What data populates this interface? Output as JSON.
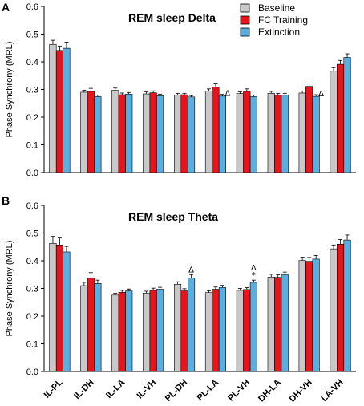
{
  "colors": {
    "Baseline": "#c8c8c8",
    "FC Training": "#e8141b",
    "Extinction": "#5aaee0"
  },
  "legend": [
    "Baseline",
    "FC Training",
    "Extinction"
  ],
  "chart_data": [
    {
      "type": "bar",
      "panel": "A",
      "title": "REM sleep Delta",
      "ylabel": "Phase Synchrony (MRL)",
      "xlabel": "",
      "ylim": [
        0,
        0.6
      ],
      "yticks": [
        "0.0",
        "0.1",
        "0.2",
        "0.3",
        "0.4",
        "0.5",
        "0.6"
      ],
      "categories": [
        "IL-PL",
        "IL-DH",
        "IL-LA",
        "IL-VH",
        "PL-DH",
        "PL-LA",
        "PL-VH",
        "DH-LA",
        "DH-VH",
        "LA-VH"
      ],
      "series": [
        {
          "name": "Baseline",
          "values": [
            0.463,
            0.29,
            0.297,
            0.284,
            0.28,
            0.294,
            0.285,
            0.286,
            0.287,
            0.366
          ],
          "errors": [
            0.015,
            0.007,
            0.008,
            0.007,
            0.006,
            0.008,
            0.006,
            0.007,
            0.007,
            0.013
          ]
        },
        {
          "name": "FC Training",
          "values": [
            0.441,
            0.293,
            0.281,
            0.288,
            0.281,
            0.308,
            0.293,
            0.279,
            0.311,
            0.391
          ],
          "errors": [
            0.016,
            0.011,
            0.006,
            0.007,
            0.005,
            0.012,
            0.009,
            0.007,
            0.012,
            0.014
          ]
        },
        {
          "name": "Extinction",
          "values": [
            0.449,
            0.274,
            0.283,
            0.277,
            0.273,
            0.276,
            0.274,
            0.28,
            0.275,
            0.416
          ],
          "errors": [
            0.022,
            0.006,
            0.006,
            0.006,
            0.005,
            0.006,
            0.006,
            0.006,
            0.006,
            0.013
          ]
        }
      ],
      "annotations": [
        {
          "category": "PL-LA",
          "series": "Extinction",
          "text": "Δ"
        },
        {
          "category": "DH-VH",
          "series": "Extinction",
          "text": "Δ"
        }
      ]
    },
    {
      "type": "bar",
      "panel": "B",
      "title": "REM sleep Theta",
      "ylabel": "Phase Synchrony (MRL)",
      "xlabel": "",
      "ylim": [
        0,
        0.6
      ],
      "yticks": [
        "0.0",
        "0.1",
        "0.2",
        "0.3",
        "0.4",
        "0.5",
        "0.6"
      ],
      "categories": [
        "IL-PL",
        "IL-DH",
        "IL-LA",
        "IL-VH",
        "PL-DH",
        "PL-LA",
        "PL-VH",
        "DH-LA",
        "DH-VH",
        "LA-VH"
      ],
      "series": [
        {
          "name": "Baseline",
          "values": [
            0.463,
            0.31,
            0.276,
            0.283,
            0.315,
            0.285,
            0.293,
            0.341,
            0.401,
            0.443
          ],
          "errors": [
            0.025,
            0.012,
            0.007,
            0.007,
            0.009,
            0.007,
            0.007,
            0.01,
            0.012,
            0.014
          ]
        },
        {
          "name": "FC Training",
          "values": [
            0.457,
            0.337,
            0.286,
            0.293,
            0.291,
            0.297,
            0.296,
            0.34,
            0.398,
            0.46
          ],
          "errors": [
            0.028,
            0.02,
            0.007,
            0.008,
            0.008,
            0.008,
            0.007,
            0.009,
            0.014,
            0.017
          ]
        },
        {
          "name": "Extinction",
          "values": [
            0.432,
            0.318,
            0.291,
            0.297,
            0.338,
            0.303,
            0.322,
            0.349,
            0.406,
            0.475
          ],
          "errors": [
            0.02,
            0.012,
            0.007,
            0.007,
            0.012,
            0.008,
            0.008,
            0.01,
            0.013,
            0.018
          ]
        }
      ],
      "annotations": [
        {
          "category": "PL-DH",
          "series": "Extinction",
          "text": "Δ"
        },
        {
          "category": "PL-VH",
          "series": "Extinction",
          "text": "Δ*"
        }
      ]
    }
  ]
}
